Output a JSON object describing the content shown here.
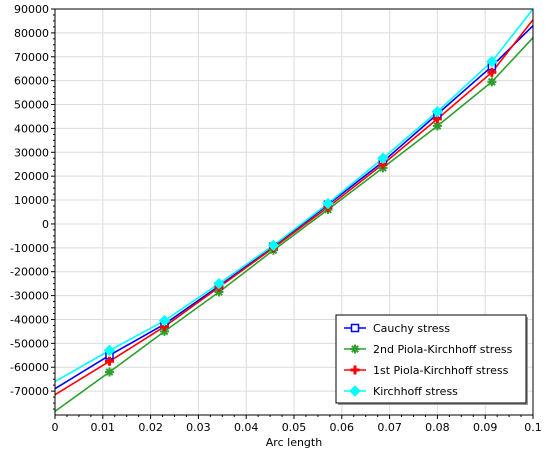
{
  "chart_data": {
    "type": "line",
    "xlabel": "Arc length",
    "ylabel": "",
    "xlim": [
      0,
      0.1
    ],
    "ylim": [
      -80000,
      90000
    ],
    "xticks": [
      0,
      0.01,
      0.02,
      0.03,
      0.04,
      0.05,
      0.06,
      0.07,
      0.08,
      0.09,
      0.1
    ],
    "xtick_labels": [
      "0",
      "0.01",
      "0.02",
      "0.03",
      "0.04",
      "0.05",
      "0.06",
      "0.07",
      "0.08",
      "0.09",
      "0.1"
    ],
    "yticks": [
      -70000,
      -60000,
      -50000,
      -40000,
      -30000,
      -20000,
      -10000,
      0,
      10000,
      20000,
      30000,
      40000,
      50000,
      60000,
      70000,
      80000,
      90000
    ],
    "ytick_labels": [
      "-70000",
      "-60000",
      "-50000",
      "-40000",
      "-30000",
      "-20000",
      "-10000",
      "0",
      "10000",
      "20000",
      "30000",
      "40000",
      "50000",
      "60000",
      "70000",
      "80000",
      "90000"
    ],
    "grid": true,
    "legend_position": "bottom-right",
    "marker_x": [
      0.0114,
      0.0229,
      0.0343,
      0.0457,
      0.0571,
      0.0686,
      0.08,
      0.0914
    ],
    "series": [
      {
        "name": "Cauchy stress",
        "color": "#0000ff",
        "marker": "square",
        "x": [
          0,
          0.0114,
          0.0229,
          0.0343,
          0.0457,
          0.0571,
          0.0686,
          0.08,
          0.0914,
          0.1
        ],
        "y": [
          -69000,
          -55000,
          -42000,
          -26000,
          -9500,
          8000,
          26000,
          46000,
          66000,
          83000
        ]
      },
      {
        "name": "2nd Piola-Kirchhoff stress",
        "color": "#2ca02c",
        "marker": "star",
        "x": [
          0,
          0.0114,
          0.0229,
          0.0343,
          0.0457,
          0.0571,
          0.0686,
          0.08,
          0.0914,
          0.1
        ],
        "y": [
          -78500,
          -62000,
          -45000,
          -28500,
          -11000,
          6000,
          23500,
          41000,
          59500,
          78000
        ]
      },
      {
        "name": "1st Piola-Kirchhoff stress",
        "color": "#ff0000",
        "marker": "plus",
        "x": [
          0,
          0.0114,
          0.0229,
          0.0343,
          0.0457,
          0.0571,
          0.0686,
          0.08,
          0.0914,
          0.1
        ],
        "y": [
          -71500,
          -57500,
          -43000,
          -26500,
          -10000,
          7000,
          25000,
          44000,
          63500,
          85500
        ]
      },
      {
        "name": "Kirchhoff stress",
        "color": "#00ffff",
        "marker": "diamond",
        "x": [
          0,
          0.0114,
          0.0229,
          0.0343,
          0.0457,
          0.0571,
          0.0686,
          0.08,
          0.0914,
          0.1
        ],
        "y": [
          -66000,
          -53000,
          -40500,
          -25000,
          -9000,
          8500,
          27500,
          47000,
          68000,
          90000
        ]
      }
    ]
  }
}
